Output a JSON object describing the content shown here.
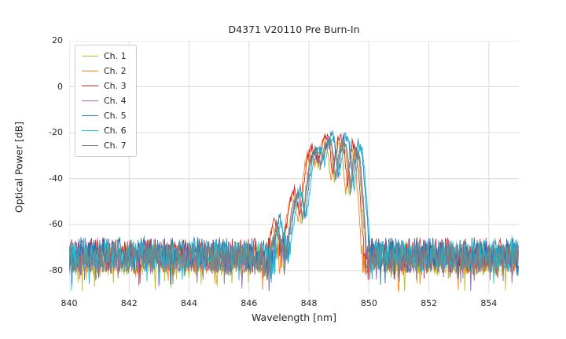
{
  "figure": {
    "title": "D4371 V20110 Pre Burn-In"
  },
  "chart_data": {
    "type": "line",
    "title": "D4371 V20110 Pre Burn-In",
    "xlabel": "Wavelength [nm]",
    "ylabel": "Optical Power [dB]",
    "xlim": [
      840,
      855
    ],
    "ylim": [
      -90,
      20
    ],
    "xticks": [
      840,
      842,
      844,
      846,
      848,
      850,
      852,
      854
    ],
    "yticks": [
      20,
      0,
      -20,
      -40,
      -60,
      -80
    ],
    "grid": true,
    "grid_color": "#dcdcdc",
    "legend_position": "upper-left",
    "noise_floor_db": -74,
    "noise_band_db": [
      -88,
      -65
    ],
    "signal_band_nm": [
      846.5,
      850.0
    ],
    "peak_power_db": -22,
    "envelope_points": [
      [
        840.0,
        -74
      ],
      [
        846.45,
        -74
      ],
      [
        846.6,
        -80
      ],
      [
        846.9,
        -58
      ],
      [
        847.15,
        -76
      ],
      [
        847.45,
        -50
      ],
      [
        847.6,
        -46
      ],
      [
        847.75,
        -58
      ],
      [
        848.0,
        -32
      ],
      [
        848.2,
        -27
      ],
      [
        848.35,
        -34
      ],
      [
        848.55,
        -24
      ],
      [
        848.7,
        -23
      ],
      [
        848.85,
        -40
      ],
      [
        849.05,
        -23
      ],
      [
        849.2,
        -25
      ],
      [
        849.35,
        -45
      ],
      [
        849.5,
        -26
      ],
      [
        849.65,
        -30
      ],
      [
        849.8,
        -55
      ],
      [
        849.9,
        -74
      ],
      [
        855.0,
        -74
      ]
    ],
    "series": [
      {
        "name": "Ch. 1",
        "color": "#bcbd22",
        "dx": 0.0,
        "dy": -1.5,
        "seed": 11
      },
      {
        "name": "Ch. 2",
        "color": "#ff7f0e",
        "dx": -0.12,
        "dy": -1.0,
        "seed": 22
      },
      {
        "name": "Ch. 3",
        "color": "#d62728",
        "dx": -0.06,
        "dy": 1.5,
        "seed": 33
      },
      {
        "name": "Ch. 4",
        "color": "#9467bd",
        "dx": 0.05,
        "dy": -0.5,
        "seed": 44
      },
      {
        "name": "Ch. 5",
        "color": "#1f77b4",
        "dx": 0.12,
        "dy": 2.0,
        "seed": 55
      },
      {
        "name": "Ch. 6",
        "color": "#17becf",
        "dx": 0.16,
        "dy": 0.5,
        "seed": 66
      },
      {
        "name": "Ch. 7",
        "color": "#7f7f7f",
        "dx": 0.03,
        "dy": -0.5,
        "seed": 77
      }
    ]
  }
}
